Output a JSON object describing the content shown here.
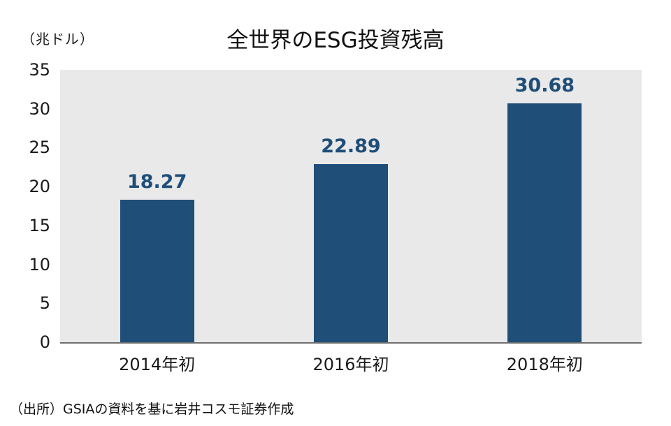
{
  "chart": {
    "title": "全世界のESG投資残高",
    "unit": "（兆ドル）",
    "source": "（出所）GSIAの資料を基に岩井コスモ証券作成"
  },
  "chart_data": {
    "type": "bar",
    "title": "全世界のESG投資残高",
    "ylabel": "（兆ドル）",
    "categories": [
      "2014年初",
      "2016年初",
      "2018年初"
    ],
    "values": [
      18.27,
      22.89,
      30.68
    ],
    "data_labels": [
      "18.27",
      "22.89",
      "30.68"
    ],
    "ylim": [
      0,
      35
    ],
    "yticks": [
      0,
      5,
      10,
      15,
      20,
      25,
      30,
      35
    ],
    "ytick_interval": 5,
    "grid": false,
    "legend": false,
    "bar_color": "#1F4E79",
    "label_color": "#1F4E79",
    "plot_bg": "#E9E9E9",
    "source": "（出所）GSIAの資料を基に岩井コスモ証券作成"
  }
}
